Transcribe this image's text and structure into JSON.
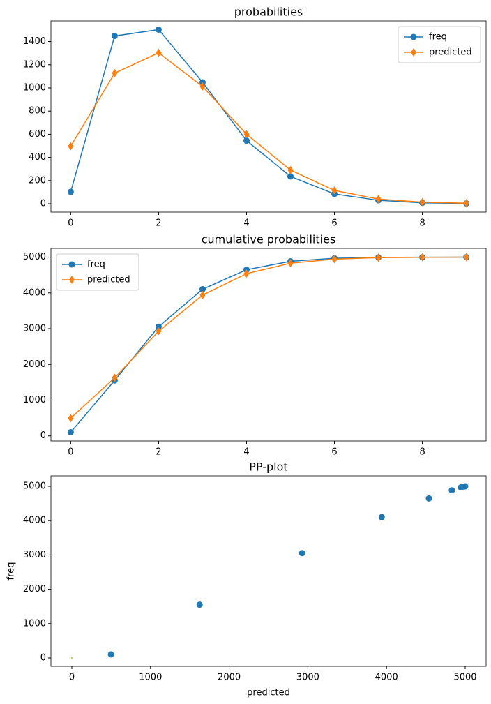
{
  "chart_data": [
    {
      "type": "line",
      "title": "probabilities",
      "x": [
        0,
        1,
        2,
        3,
        4,
        5,
        6,
        7,
        8,
        9
      ],
      "series": [
        {
          "name": "freq",
          "color": "#1f77b4",
          "marker": "circle",
          "values": [
            103,
            1448,
            1503,
            1048,
            545,
            236,
            85,
            30,
            8,
            3
          ]
        },
        {
          "name": "predicted",
          "color": "#ff7f0e",
          "marker": "diamond",
          "values": [
            497,
            1127,
            1303,
            1012,
            600,
            291,
            115,
            41,
            14,
            5
          ]
        }
      ],
      "xlim": [
        -0.45,
        9.45
      ],
      "xticks": [
        0,
        2,
        4,
        6,
        8
      ],
      "ylim": [
        -72,
        1578
      ],
      "yticks": [
        0,
        200,
        400,
        600,
        800,
        1000,
        1200,
        1400
      ],
      "legend": "upper right"
    },
    {
      "type": "line",
      "title": "cumulative probabilities",
      "x": [
        0,
        1,
        2,
        3,
        4,
        5,
        6,
        7,
        8,
        9
      ],
      "series": [
        {
          "name": "freq",
          "color": "#1f77b4",
          "marker": "circle",
          "values": [
            103,
            1552,
            3055,
            4103,
            4648,
            4884,
            4969,
            4993,
            4998,
            5000
          ]
        },
        {
          "name": "predicted",
          "color": "#ff7f0e",
          "marker": "diamond",
          "values": [
            497,
            1624,
            2927,
            3939,
            4539,
            4830,
            4945,
            4986,
            4996,
            5000
          ]
        }
      ],
      "xlim": [
        -0.45,
        9.45
      ],
      "xticks": [
        0,
        2,
        4,
        6,
        8
      ],
      "ylim": [
        -142,
        5245
      ],
      "yticks": [
        0,
        1000,
        2000,
        3000,
        4000,
        5000
      ],
      "legend": "upper left"
    },
    {
      "type": "scatter",
      "title": "PP-plot",
      "x_label": "predicted",
      "y_label": "freq",
      "series": [
        {
          "color": "#1f77b4",
          "size": 4.5,
          "x": [
            497,
            1624,
            2927,
            3939,
            4539,
            4830,
            4945,
            4986,
            4996,
            5000
          ],
          "values": [
            103,
            1552,
            3055,
            4103,
            4648,
            4884,
            4969,
            4993,
            4998,
            5000
          ]
        },
        {
          "color": "#bcbd22",
          "size": 1,
          "x": [
            0
          ],
          "values": [
            0
          ]
        }
      ],
      "xlim": [
        -266,
        5266
      ],
      "xticks": [
        0,
        1000,
        2000,
        3000,
        4000,
        5000
      ],
      "ylim": [
        -244,
        5305
      ],
      "yticks": [
        0,
        1000,
        2000,
        3000,
        4000,
        5000
      ]
    }
  ]
}
